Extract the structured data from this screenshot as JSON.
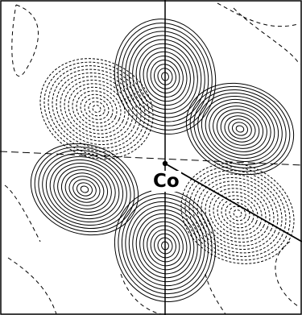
{
  "figure": {
    "atom_label": "Co"
  },
  "colors": {
    "line": "#000000",
    "background": "#ffffff"
  },
  "style": {
    "positive_contours": "solid",
    "negative_contours": "dashed"
  }
}
